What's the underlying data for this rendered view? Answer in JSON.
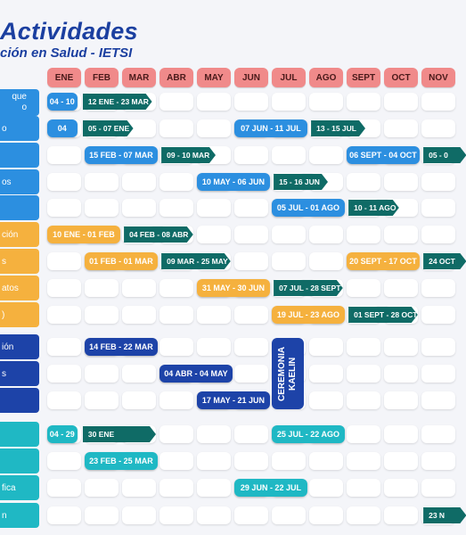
{
  "header": {
    "title": "Actividades",
    "subtitle": "ción en Salud - IETSI"
  },
  "months": [
    "ENE",
    "FEB",
    "MAR",
    "ABR",
    "MAY",
    "JUN",
    "JUL",
    "AGO",
    "SEPT",
    "OCT",
    "NOV"
  ],
  "rows": [
    {
      "label": "que",
      "label2": "o",
      "color": "#2c8fe0"
    },
    {
      "label": "o",
      "label2": "",
      "color": "#2c8fe0"
    },
    {
      "label": "",
      "label2": "",
      "color": "#2c8fe0"
    },
    {
      "label": "os",
      "label2": "",
      "color": "#2c8fe0"
    },
    {
      "label": "",
      "label2": "",
      "color": "#2c8fe0"
    },
    {
      "label": "ción",
      "label2": "",
      "color": "#f5b13e"
    },
    {
      "label": "s",
      "label2": "",
      "color": "#f5b13e"
    },
    {
      "label": "atos",
      "label2": "",
      "color": "#f5b13e"
    },
    {
      "label": ")",
      "label2": "",
      "color": "#f5b13e"
    },
    {
      "label": "ión",
      "label2": "",
      "color": "#1d43a8"
    },
    {
      "label": "s",
      "label2": "",
      "color": "#1d43a8"
    },
    {
      "label": "",
      "label2": "",
      "color": "#1d43a8"
    },
    {
      "label": "",
      "label2": "",
      "color": "#1fb8c4"
    },
    {
      "label": "",
      "label2": "",
      "color": "#1fb8c4"
    },
    {
      "label": "fica",
      "label2": "",
      "color": "#1fb8c4"
    },
    {
      "label": "n",
      "label2": "",
      "color": "#1fb8c4"
    }
  ],
  "events": [
    {
      "row": 0,
      "kind": "bar",
      "start": 0,
      "end": 0.8,
      "text": "04 - 10",
      "color": "#2c8fe0"
    },
    {
      "row": 0,
      "kind": "chev",
      "start": 0.95,
      "end": 2.8,
      "text": "12 ENE - 23 MAR",
      "color": "#0f6b66"
    },
    {
      "row": 1,
      "kind": "bar",
      "start": 0,
      "end": 0.8,
      "text": "04",
      "color": "#2c8fe0"
    },
    {
      "row": 1,
      "kind": "chev",
      "start": 0.95,
      "end": 2.3,
      "text": "05 - 07 ENE",
      "color": "#0f6b66"
    },
    {
      "row": 1,
      "kind": "bar",
      "start": 5,
      "end": 6.95,
      "text": "07 JUN - 11 JUL",
      "color": "#2c8fe0"
    },
    {
      "row": 1,
      "kind": "chev",
      "start": 7.05,
      "end": 8.5,
      "text": "13 - 15 JUL",
      "color": "#0f6b66"
    },
    {
      "row": 2,
      "kind": "bar",
      "start": 1,
      "end": 2.95,
      "text": "15 FEB - 07 MAR",
      "color": "#2c8fe0"
    },
    {
      "row": 2,
      "kind": "chev",
      "start": 3.05,
      "end": 4.5,
      "text": "09 - 10 MAR",
      "color": "#0f6b66"
    },
    {
      "row": 2,
      "kind": "bar",
      "start": 8,
      "end": 9.95,
      "text": "06 SEPT - 04 OCT",
      "color": "#2c8fe0"
    },
    {
      "row": 2,
      "kind": "chev",
      "start": 10.05,
      "end": 11.2,
      "text": "05 - 0",
      "color": "#0f6b66"
    },
    {
      "row": 3,
      "kind": "bar",
      "start": 4,
      "end": 5.95,
      "text": "10 MAY - 06 JUN",
      "color": "#2c8fe0"
    },
    {
      "row": 3,
      "kind": "chev",
      "start": 6.05,
      "end": 7.5,
      "text": "15 - 16 JUN",
      "color": "#0f6b66"
    },
    {
      "row": 4,
      "kind": "bar",
      "start": 6,
      "end": 7.95,
      "text": "05 JUL - 01 AGO",
      "color": "#2c8fe0"
    },
    {
      "row": 4,
      "kind": "chev",
      "start": 8.05,
      "end": 9.4,
      "text": "10 - 11 AGO",
      "color": "#0f6b66"
    },
    {
      "row": 5,
      "kind": "bar",
      "start": 0,
      "end": 1.95,
      "text": "10 ENE - 01 FEB",
      "color": "#f5b13e"
    },
    {
      "row": 5,
      "kind": "chev",
      "start": 2.05,
      "end": 3.9,
      "text": "04 FEB - 08 ABR",
      "color": "#0f6b66"
    },
    {
      "row": 6,
      "kind": "bar",
      "start": 1,
      "end": 2.95,
      "text": "01 FEB - 01 MAR",
      "color": "#f5b13e"
    },
    {
      "row": 6,
      "kind": "chev",
      "start": 3.05,
      "end": 4.9,
      "text": "09 MAR - 25 MAY",
      "color": "#0f6b66"
    },
    {
      "row": 6,
      "kind": "bar",
      "start": 8,
      "end": 9.95,
      "text": "20 SEPT - 17 OCT",
      "color": "#f5b13e"
    },
    {
      "row": 6,
      "kind": "chev",
      "start": 10.05,
      "end": 11.2,
      "text": "24 OCT",
      "color": "#0f6b66"
    },
    {
      "row": 7,
      "kind": "bar",
      "start": 4,
      "end": 5.95,
      "text": "31 MAY - 30 JUN",
      "color": "#f5b13e"
    },
    {
      "row": 7,
      "kind": "chev",
      "start": 6.05,
      "end": 7.9,
      "text": "07 JUL - 28 SEPT",
      "color": "#0f6b66"
    },
    {
      "row": 8,
      "kind": "bar",
      "start": 6,
      "end": 7.95,
      "text": "19 JUL - 23 AGO",
      "color": "#f5b13e"
    },
    {
      "row": 8,
      "kind": "chev",
      "start": 8.05,
      "end": 9.9,
      "text": "01 SEPT - 28 OCT",
      "color": "#0f6b66"
    },
    {
      "row": 9,
      "kind": "bar",
      "start": 1,
      "end": 2.95,
      "text": "14 FEB - 22 MAR",
      "color": "#1d43a8"
    },
    {
      "row": 10,
      "kind": "bar",
      "start": 3,
      "end": 4.95,
      "text": "04 ABR - 04 MAY",
      "color": "#1d43a8"
    },
    {
      "row": 11,
      "kind": "bar",
      "start": 4,
      "end": 5.95,
      "text": "17 MAY - 21 JUN",
      "color": "#1d43a8"
    },
    {
      "row": 12,
      "kind": "bar",
      "start": 0,
      "end": 0.8,
      "text": "04 - 29",
      "color": "#1fb8c4"
    },
    {
      "row": 12,
      "kind": "chev",
      "start": 0.95,
      "end": 2.0,
      "text": "30 ENE",
      "color": "#0f6b66"
    },
    {
      "row": 12,
      "kind": "bar",
      "start": 6,
      "end": 7.95,
      "text": "25 JUL - 22 AGO",
      "color": "#1fb8c4"
    },
    {
      "row": 13,
      "kind": "bar",
      "start": 1,
      "end": 2.95,
      "text": "23 FEB - 25 MAR",
      "color": "#1fb8c4"
    },
    {
      "row": 14,
      "kind": "bar",
      "start": 5,
      "end": 6.95,
      "text": "29 JUN - 22 JUL",
      "color": "#1fb8c4"
    },
    {
      "row": 15,
      "kind": "chev",
      "start": 10.05,
      "end": 11.2,
      "text": "23 N",
      "color": "#0f6b66"
    }
  ],
  "ceremony": {
    "text": "CEREMONIA KAELIN",
    "row_start": 9,
    "row_end": 11,
    "col": 6
  }
}
